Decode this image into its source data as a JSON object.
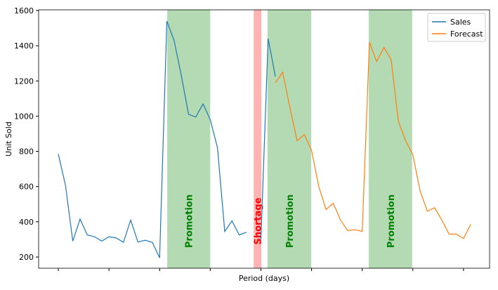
{
  "chart_data": {
    "type": "line",
    "xlabel": "Period (days)",
    "ylabel": "Unit Sold",
    "x": [
      0,
      1,
      2,
      3,
      4,
      5,
      6,
      7,
      8,
      9,
      10,
      11,
      12,
      13,
      14,
      15,
      16,
      17,
      18,
      19,
      20,
      21,
      22,
      23,
      24,
      25,
      26,
      27,
      28,
      29,
      30,
      31,
      32,
      33,
      34,
      35,
      36,
      37,
      38,
      39,
      40,
      41,
      42,
      43,
      44,
      45,
      46,
      47,
      48,
      49,
      50,
      51,
      52,
      53,
      54,
      55,
      56,
      57
    ],
    "series": [
      {
        "name": "Sales",
        "color": "#1f77b4",
        "values": [
          785,
          605,
          290,
          415,
          325,
          315,
          290,
          315,
          308,
          283,
          410,
          285,
          295,
          283,
          195,
          1540,
          1430,
          1230,
          1010,
          995,
          1070,
          980,
          820,
          345,
          405,
          325,
          340,
          null,
          300,
          1440,
          1225,
          null,
          null,
          null,
          null,
          null,
          null,
          null,
          null,
          null,
          null,
          null,
          null,
          null,
          null,
          null,
          null,
          null,
          null,
          null,
          null,
          null,
          null,
          null,
          null,
          null,
          null,
          null
        ]
      },
      {
        "name": "Forecast",
        "color": "#ff7f0e",
        "values": [
          null,
          null,
          null,
          null,
          null,
          null,
          null,
          null,
          null,
          null,
          null,
          null,
          null,
          null,
          null,
          null,
          null,
          null,
          null,
          null,
          null,
          null,
          null,
          null,
          null,
          null,
          null,
          null,
          null,
          null,
          1190,
          1250,
          1050,
          860,
          895,
          805,
          600,
          470,
          505,
          410,
          350,
          355,
          345,
          1420,
          1310,
          1390,
          1320,
          970,
          860,
          780,
          575,
          460,
          480,
          410,
          330,
          330,
          305,
          385
        ]
      }
    ],
    "spans": [
      {
        "label": "Promotion",
        "start": 15.05,
        "end": 21.0,
        "color": "#b3dab3",
        "text_color": "#008000"
      },
      {
        "label": "Shortage",
        "start": 27.0,
        "end": 28.06,
        "color": "#ffb3b3",
        "text_color": "#ff0000"
      },
      {
        "label": "Promotion",
        "start": 28.9,
        "end": 34.95,
        "color": "#b3dab3",
        "text_color": "#008000"
      },
      {
        "label": "Promotion",
        "start": 42.9,
        "end": 48.9,
        "color": "#b3dab3",
        "text_color": "#008000"
      }
    ],
    "xlim": [
      -2.72,
      59.6
    ],
    "xticks": [
      0,
      7,
      14,
      21,
      28,
      35,
      42,
      49,
      56
    ],
    "ylim": [
      136,
      1604
    ],
    "yticks": [
      200,
      400,
      600,
      800,
      1000,
      1200,
      1400,
      1600
    ],
    "legend": "upper right"
  }
}
